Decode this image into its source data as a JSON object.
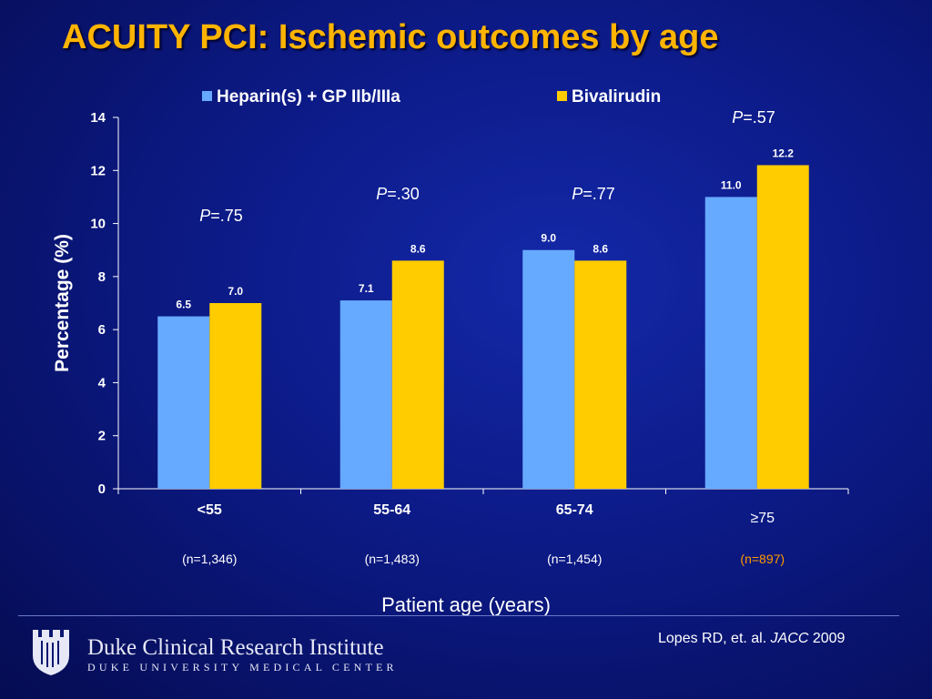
{
  "slide": {
    "title": "ACUITY PCI: Ischemic outcomes by age"
  },
  "chart_data": {
    "type": "bar",
    "title": "",
    "xlabel": "Patient age (years)",
    "ylabel": "Percentage (%)",
    "ylim": [
      0,
      14
    ],
    "yticks": [
      0,
      2,
      4,
      6,
      8,
      10,
      12,
      14
    ],
    "grid": false,
    "legend_position": "top",
    "categories": [
      "<55",
      "55-64",
      "65-74",
      "≥75"
    ],
    "sample_sizes": [
      "(n=1,346)",
      "(n=1,483)",
      "(n=1,454)",
      "(n=897)"
    ],
    "p_values": [
      "P=.75",
      "P=.30",
      "P=.77",
      "P=.57"
    ],
    "series": [
      {
        "name": "Heparin(s) + GP IIb/IIIa",
        "values": [
          6.5,
          7.1,
          9.0,
          11.0
        ],
        "color": "#66aaff"
      },
      {
        "name": "Bivalirudin",
        "values": [
          7.0,
          8.6,
          8.6,
          12.2
        ],
        "color": "#ffcc00"
      }
    ],
    "data_labels": [
      [
        "6.5",
        "7.1",
        "9.0",
        "11.0"
      ],
      [
        "7.0",
        "8.6",
        "8.6",
        "12.2"
      ]
    ]
  },
  "colors": {
    "title": "#ffb400",
    "highlight_sample_size": "#ff9900",
    "text": "#ffffff"
  },
  "footer": {
    "institute": "Duke Clinical Research Institute",
    "institute_sub": "DUKE UNIVERSITY MEDICAL CENTER",
    "citation_authors": "Lopes RD, et. al.",
    "citation_journal": "JACC",
    "citation_year": "2009",
    "logo_icon": "duke-shield-icon"
  }
}
